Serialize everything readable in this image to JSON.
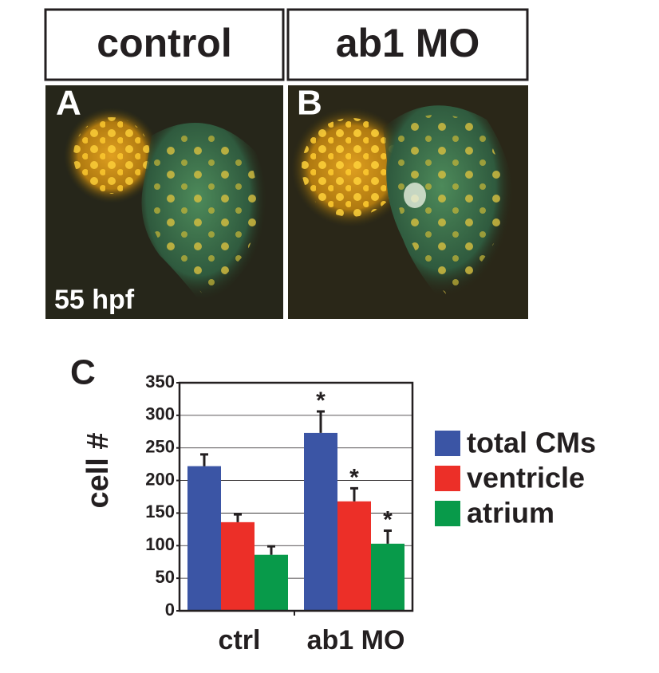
{
  "panels": [
    {
      "header": "control",
      "label": "A",
      "stage": "55 hpf"
    },
    {
      "header": "ab1 MO",
      "label": "B"
    }
  ],
  "chart_data": {
    "type": "bar",
    "panel_label": "C",
    "y_label": "cell #",
    "categories": [
      "ctrl",
      "ab1 MO"
    ],
    "series": [
      {
        "name": "total CMs",
        "color": "#3b55a5",
        "values": [
          222,
          273
        ],
        "errors": [
          18,
          33
        ],
        "markers": [
          null,
          "*"
        ]
      },
      {
        "name": "ventricle",
        "color": "#ec2f28",
        "values": [
          136,
          168
        ],
        "errors": [
          12,
          20
        ],
        "markers": [
          null,
          "*"
        ]
      },
      {
        "name": "atrium",
        "color": "#089a4a",
        "values": [
          86,
          103
        ],
        "errors": [
          13,
          20
        ],
        "markers": [
          null,
          "*"
        ]
      }
    ],
    "ylim": [
      0,
      350
    ],
    "yticks": [
      0,
      50,
      100,
      150,
      200,
      250,
      300,
      350
    ],
    "grid": true
  }
}
